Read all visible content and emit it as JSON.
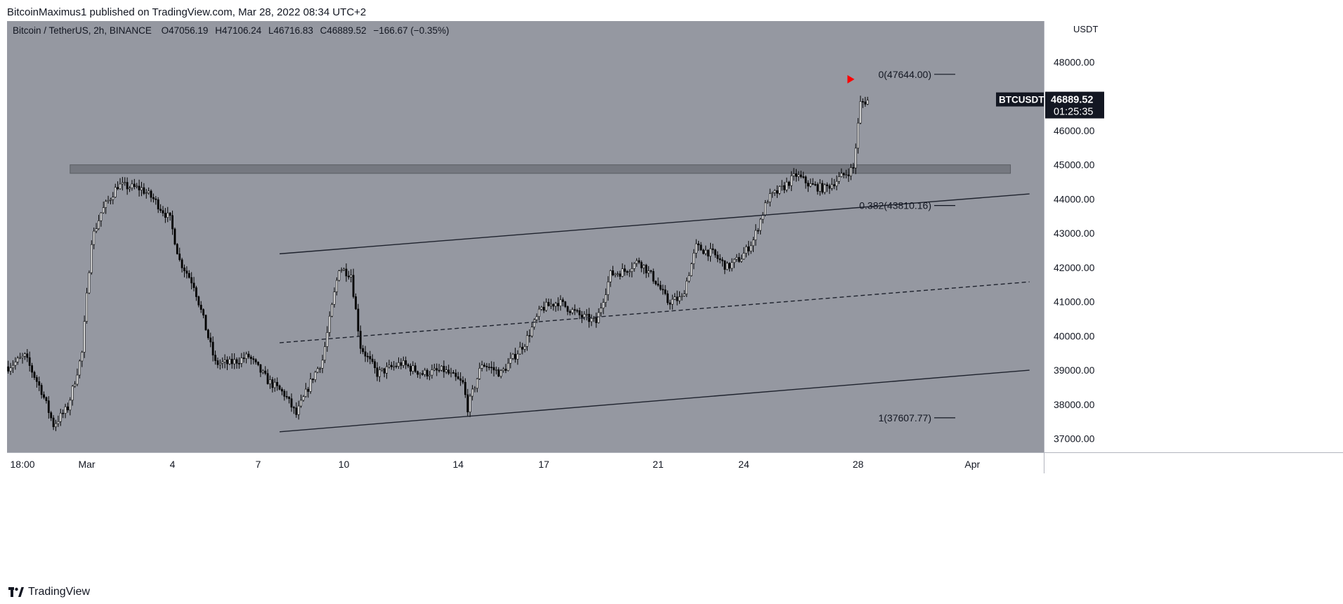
{
  "header": {
    "publisher_line": "BitcoinMaximus1 published on TradingView.com, Mar 28, 2022 08:34 UTC+2"
  },
  "legend": {
    "symbol": "Bitcoin / TetherUS, 2h, BINANCE",
    "open_label": "O",
    "open": "47056.19",
    "high_label": "H",
    "high": "47106.24",
    "low_label": "L",
    "low": "46716.83",
    "close_label": "C",
    "close": "46889.52",
    "change": "−166.67 (−0.35%)"
  },
  "price_tag": {
    "symbol": "BTCUSDT",
    "price": "46889.52",
    "countdown": "01:25:35"
  },
  "footer": {
    "brand": "TradingView"
  },
  "colors": {
    "plot_bg": "#9598a1",
    "axis_bg": "#ffffff",
    "candle": "#000000",
    "line": "#1e222d",
    "zone": "#6b6e75",
    "marker": "#ff0000"
  },
  "chart_data": {
    "type": "candlestick",
    "currency_label": "USDT",
    "y_ticks": [
      37000,
      38000,
      39000,
      40000,
      41000,
      42000,
      43000,
      44000,
      45000,
      46000,
      47000,
      48000
    ],
    "y_tick_labels": [
      "37000.00",
      "38000.00",
      "39000.00",
      "40000.00",
      "41000.00",
      "42000.00",
      "43000.00",
      "44000.00",
      "45000.00",
      "46000.00",
      "47000.00",
      "48000.00"
    ],
    "ylim": [
      36600,
      49200
    ],
    "x_range": [
      "2022-02-26T05:00",
      "2022-04-03T12:00"
    ],
    "x_ticks": [
      "2022-02-26T18:00",
      "2022-03-01",
      "2022-03-04",
      "2022-03-07",
      "2022-03-10",
      "2022-03-14",
      "2022-03-17",
      "2022-03-21",
      "2022-03-24",
      "2022-03-28",
      "2022-04-01"
    ],
    "x_tick_labels": [
      "18:00",
      "Mar",
      "4",
      "7",
      "10",
      "14",
      "17",
      "21",
      "24",
      "28",
      "Apr"
    ],
    "price_keypoints": [
      [
        "2022-02-26T06:00",
        39100
      ],
      [
        "2022-02-26T20:00",
        39400
      ],
      [
        "2022-02-27T10:00",
        38400
      ],
      [
        "2022-02-27T20:00",
        37400
      ],
      [
        "2022-02-28T08:00",
        37900
      ],
      [
        "2022-02-28T20:00",
        39500
      ],
      [
        "2022-03-01T04:00",
        42800
      ],
      [
        "2022-03-01T12:00",
        43600
      ],
      [
        "2022-03-02T02:00",
        44400
      ],
      [
        "2022-03-02T22:00",
        44300
      ],
      [
        "2022-03-03T08:00",
        44000
      ],
      [
        "2022-03-03T22:00",
        43400
      ],
      [
        "2022-03-04T06:00",
        42200
      ],
      [
        "2022-03-04T18:00",
        41500
      ],
      [
        "2022-03-05T12:00",
        39200
      ],
      [
        "2022-03-06T00:00",
        39200
      ],
      [
        "2022-03-06T16:00",
        39400
      ],
      [
        "2022-03-07T08:00",
        38700
      ],
      [
        "2022-03-07T22:00",
        38300
      ],
      [
        "2022-03-08T08:00",
        37700
      ],
      [
        "2022-03-08T22:00",
        38800
      ],
      [
        "2022-03-09T06:00",
        39300
      ],
      [
        "2022-03-09T20:00",
        42000
      ],
      [
        "2022-03-10T06:00",
        41800
      ],
      [
        "2022-03-10T14:00",
        39700
      ],
      [
        "2022-03-11T04:00",
        38900
      ],
      [
        "2022-03-12T00:00",
        39200
      ],
      [
        "2022-03-12T18:00",
        38900
      ],
      [
        "2022-03-13T12:00",
        39000
      ],
      [
        "2022-03-14T04:00",
        38600
      ],
      [
        "2022-03-14T08:00",
        37900
      ],
      [
        "2022-03-14T20:00",
        39200
      ],
      [
        "2022-03-15T12:00",
        38900
      ],
      [
        "2022-03-16T08:00",
        39800
      ],
      [
        "2022-03-16T22:00",
        40800
      ],
      [
        "2022-03-17T12:00",
        41000
      ],
      [
        "2022-03-18T06:00",
        40600
      ],
      [
        "2022-03-18T20:00",
        40400
      ],
      [
        "2022-03-19T08:00",
        41800
      ],
      [
        "2022-03-19T20:00",
        41900
      ],
      [
        "2022-03-20T08:00",
        42200
      ],
      [
        "2022-03-20T22:00",
        41600
      ],
      [
        "2022-03-21T08:00",
        41000
      ],
      [
        "2022-03-21T20:00",
        41100
      ],
      [
        "2022-03-22T08:00",
        42600
      ],
      [
        "2022-03-22T22:00",
        42400
      ],
      [
        "2022-03-23T10:00",
        42000
      ],
      [
        "2022-03-23T22:00",
        42300
      ],
      [
        "2022-03-24T08:00",
        42800
      ],
      [
        "2022-03-24T20:00",
        44000
      ],
      [
        "2022-03-25T08:00",
        44300
      ],
      [
        "2022-03-25T20:00",
        44700
      ],
      [
        "2022-03-26T08:00",
        44400
      ],
      [
        "2022-03-26T20:00",
        44300
      ],
      [
        "2022-03-27T08:00",
        44600
      ],
      [
        "2022-03-27T20:00",
        44900
      ],
      [
        "2022-03-28T02:00",
        46800
      ],
      [
        "2022-03-28T08:00",
        46889.52
      ]
    ],
    "resistance_zone": {
      "from": 44750,
      "to": 45000,
      "x_start": "2022-02-28T10:00",
      "x_end": "2022-04-02T08:00"
    },
    "channel_lines": [
      {
        "style": "solid",
        "start": [
          "2022-03-07T18:00",
          42400
        ],
        "end": [
          "2022-04-03T00:00",
          44150
        ]
      },
      {
        "style": "dashed",
        "start": [
          "2022-03-07T18:00",
          39800
        ],
        "end": [
          "2022-04-03T00:00",
          41580
        ]
      },
      {
        "style": "solid",
        "start": [
          "2022-03-07T18:00",
          37200
        ],
        "end": [
          "2022-04-03T00:00",
          39000
        ]
      }
    ],
    "fib_levels": [
      {
        "ratio": "0",
        "label": "0(47644.00)",
        "value": 47644.0
      },
      {
        "ratio": "0.382",
        "label": "0.382(43810.16)",
        "value": 43810.16
      },
      {
        "ratio": "1",
        "label": "1(37607.77)",
        "value": 37607.77
      }
    ],
    "marker": {
      "type": "triangle-right",
      "x": "2022-03-27T18:00",
      "y": 47500
    },
    "last_price": 46889.52
  }
}
